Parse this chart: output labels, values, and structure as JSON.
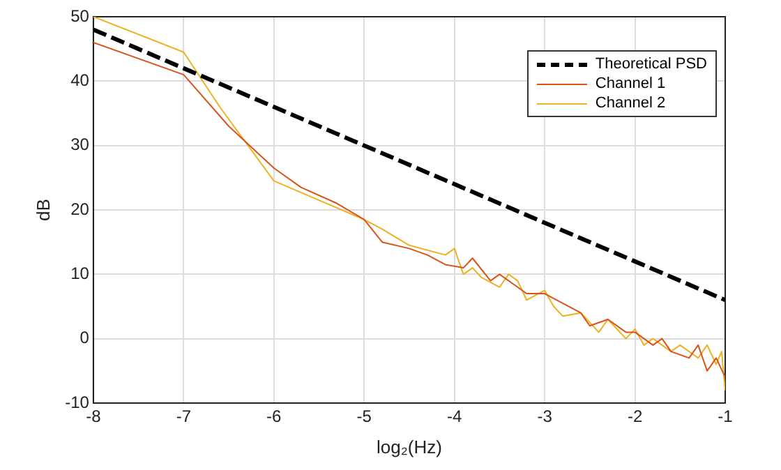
{
  "chart_data": {
    "type": "line",
    "xlabel": "log₂(Hz)",
    "ylabel": "dB",
    "xlim": [
      -8,
      -1
    ],
    "xticks": [
      -8,
      -7,
      -6,
      -5,
      -4,
      -3,
      -2,
      -1
    ],
    "ylim": [
      -10,
      50
    ],
    "yticks": [
      -10,
      0,
      10,
      20,
      30,
      40,
      50
    ],
    "grid": true,
    "legend": "top right",
    "marker": "none",
    "series": [
      {
        "name": "Theoretical PSD",
        "color": "#000000",
        "line_style": "dashed",
        "x": [
          -8,
          -7,
          -6,
          -5,
          -4,
          -3,
          -2,
          -1
        ],
        "values": [
          48,
          42,
          36,
          30,
          24,
          18,
          12,
          6
        ]
      },
      {
        "name": "Channel 1",
        "color": "#d95319",
        "line_style": "solid",
        "x": [
          -8,
          -7,
          -6.5,
          -6,
          -5.7,
          -5.3,
          -5,
          -4.8,
          -4.5,
          -4.3,
          -4.1,
          -3.9,
          -3.8,
          -3.6,
          -3.5,
          -3.3,
          -3.2,
          -3,
          -2.8,
          -2.6,
          -2.5,
          -2.3,
          -2.1,
          -2,
          -1.8,
          -1.7,
          -1.6,
          -1.4,
          -1.3,
          -1.2,
          -1.1,
          -1
        ],
        "values": [
          46,
          41,
          33,
          26.5,
          23.5,
          21,
          18.5,
          15,
          14,
          13,
          11.5,
          11,
          12.5,
          9,
          10,
          8,
          7,
          7,
          5.5,
          4,
          2,
          3,
          1,
          1,
          -1,
          0,
          -2,
          -3,
          -1,
          -5,
          -3,
          -6
        ]
      },
      {
        "name": "Channel 2",
        "color": "#edb120",
        "line_style": "solid",
        "x": [
          -8,
          -7,
          -6.6,
          -6,
          -5.5,
          -5,
          -4.8,
          -4.5,
          -4.1,
          -4,
          -3.9,
          -3.8,
          -3.7,
          -3.5,
          -3.4,
          -3.3,
          -3.2,
          -3,
          -2.9,
          -2.8,
          -2.6,
          -2.4,
          -2.3,
          -2.1,
          -2,
          -1.9,
          -1.8,
          -1.6,
          -1.5,
          -1.3,
          -1.2,
          -1.1,
          -1.04,
          -1
        ],
        "values": [
          50,
          44.5,
          36,
          24.5,
          21.5,
          18.5,
          17,
          14.5,
          13,
          14,
          10,
          11,
          9.5,
          8,
          10,
          9,
          6,
          7.5,
          5,
          3.5,
          4,
          1,
          3,
          0,
          1.5,
          -1,
          0,
          -2,
          -1,
          -3,
          -1,
          -4,
          -2,
          -8
        ]
      }
    ]
  }
}
